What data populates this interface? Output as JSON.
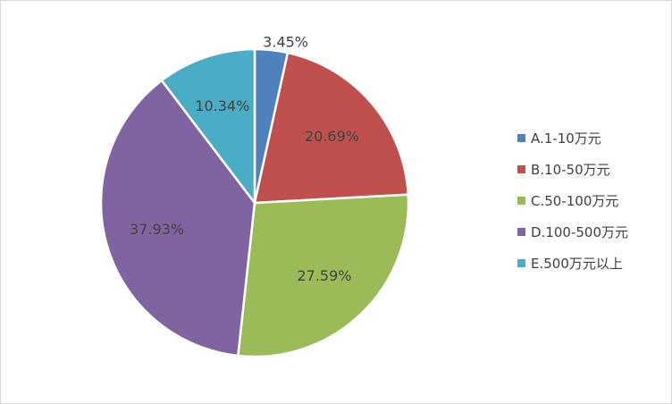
{
  "chart_data": {
    "type": "pie",
    "title": "",
    "legend_position": "right",
    "start_angle_deg": 0,
    "direction": "clockwise",
    "slices": [
      {
        "label": "A.1-10万元",
        "value": 3.45,
        "display": "3.45%",
        "color": "#4f81bd"
      },
      {
        "label": "B.10-50万元",
        "value": 20.69,
        "display": "20.69%",
        "color": "#c0504d"
      },
      {
        "label": "C.50-100万元",
        "value": 27.59,
        "display": "27.59%",
        "color": "#9bbb59"
      },
      {
        "label": "D.100-500万元",
        "value": 37.93,
        "display": "37.93%",
        "color": "#8064a2"
      },
      {
        "label": "E.500万元以上",
        "value": 10.34,
        "display": "10.34%",
        "color": "#4bacc6"
      }
    ]
  }
}
